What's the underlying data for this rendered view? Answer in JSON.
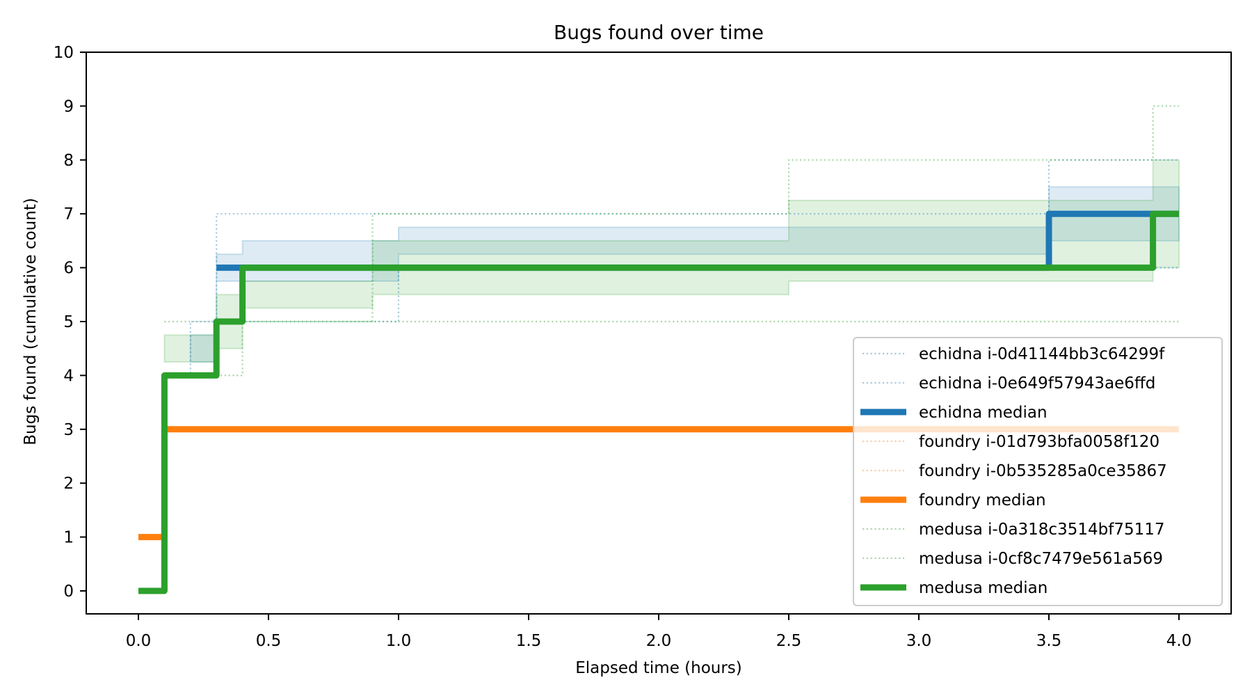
{
  "chart_data": {
    "type": "line",
    "subtype": "step",
    "title": "Bugs found over time",
    "xlabel": "Elapsed time (hours)",
    "ylabel": "Bugs found (cumulative count)",
    "xlim": [
      -0.2,
      4.2
    ],
    "ylim": [
      -0.4,
      10
    ],
    "xticks": [
      "0.0",
      "0.5",
      "1.0",
      "1.5",
      "2.0",
      "2.5",
      "3.0",
      "3.5",
      "4.0"
    ],
    "xtick_values": [
      0,
      0.5,
      1.0,
      1.5,
      2.0,
      2.5,
      3.0,
      3.5,
      4.0
    ],
    "yticks": [
      "0",
      "1",
      "2",
      "3",
      "4",
      "5",
      "6",
      "7",
      "8",
      "9",
      "10"
    ],
    "ytick_values": [
      0,
      1,
      2,
      3,
      4,
      5,
      6,
      7,
      8,
      9,
      10
    ],
    "grid": false,
    "legend_position": "lower right",
    "series": [
      {
        "name": "echidna i-0d41144bb3c64299f",
        "tool": "echidna",
        "style": "dotted",
        "color": "#1f77b4",
        "opacity": 0.4,
        "x": [
          0.1,
          0.2,
          0.3,
          3.5,
          4.0
        ],
        "y": [
          4,
          5,
          7,
          8,
          8
        ]
      },
      {
        "name": "echidna i-0e649f57943ae6ffd",
        "tool": "echidna",
        "style": "dotted",
        "color": "#1f77b4",
        "opacity": 0.4,
        "x": [
          0.2,
          0.3,
          1.0,
          4.0
        ],
        "y": [
          4,
          5,
          6,
          6
        ]
      },
      {
        "name": "echidna median",
        "tool": "echidna",
        "style": "solid",
        "color": "#1f77b4",
        "x": [
          0.3,
          3.5,
          4.0
        ],
        "y": [
          6,
          7,
          7
        ]
      },
      {
        "name": "foundry i-01d793bfa0058f120",
        "tool": "foundry",
        "style": "dotted",
        "color": "#ff7f0e",
        "opacity": 0.4,
        "x": [
          0.0,
          0.1,
          4.0
        ],
        "y": [
          1,
          3,
          3
        ]
      },
      {
        "name": "foundry i-0b535285a0ce35867",
        "tool": "foundry",
        "style": "dotted",
        "color": "#ff7f0e",
        "opacity": 0.4,
        "x": [
          0.0,
          0.1,
          4.0
        ],
        "y": [
          1,
          3,
          3
        ]
      },
      {
        "name": "foundry median",
        "tool": "foundry",
        "style": "solid",
        "color": "#ff7f0e",
        "x": [
          0.0,
          0.1,
          4.0
        ],
        "y": [
          1,
          3,
          3
        ]
      },
      {
        "name": "medusa i-0a318c3514bf75117",
        "tool": "medusa",
        "style": "dotted",
        "color": "#2ca02c",
        "opacity": 0.4,
        "x": [
          0.1,
          4.0
        ],
        "y": [
          5,
          5
        ]
      },
      {
        "name": "medusa i-0cf8c7479e561a569",
        "tool": "medusa",
        "style": "dotted",
        "color": "#2ca02c",
        "opacity": 0.4,
        "x": [
          0.3,
          0.4,
          0.9,
          2.5,
          3.9,
          4.0
        ],
        "y": [
          4,
          5,
          7,
          8,
          9,
          9
        ]
      },
      {
        "name": "medusa median",
        "tool": "medusa",
        "style": "solid",
        "color": "#2ca02c",
        "x": [
          0.0,
          0.1,
          0.3,
          0.4,
          3.9,
          4.0
        ],
        "y": [
          0,
          4,
          5,
          6,
          7,
          7
        ]
      }
    ],
    "bands": [
      {
        "tool": "echidna",
        "color": "#1f77b4",
        "opacity": 0.15,
        "x": [
          0.2,
          0.3,
          0.4,
          1.0,
          3.5,
          4.0
        ],
        "lower": [
          4.25,
          5.75,
          5.75,
          6.25,
          6.5,
          6.5
        ],
        "upper": [
          4.75,
          6.25,
          6.5,
          6.75,
          7.5,
          7.5
        ]
      },
      {
        "tool": "medusa",
        "color": "#2ca02c",
        "opacity": 0.15,
        "x": [
          0.1,
          0.3,
          0.4,
          0.9,
          2.5,
          3.9,
          4.0
        ],
        "lower": [
          4.25,
          4.5,
          5.25,
          5.5,
          5.75,
          6.0,
          6.0
        ],
        "upper": [
          4.75,
          5.5,
          5.75,
          6.5,
          7.25,
          8.0,
          8.0
        ]
      }
    ]
  }
}
